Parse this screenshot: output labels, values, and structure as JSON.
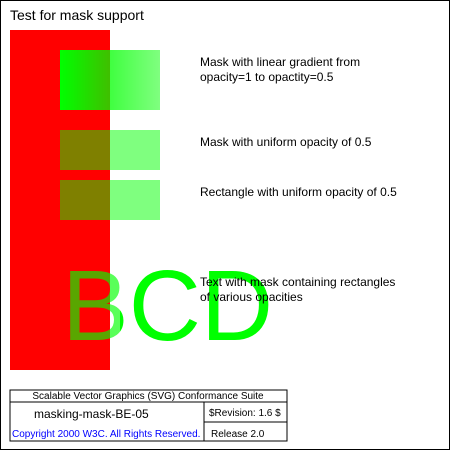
{
  "title": "Test for mask support",
  "colors": {
    "red": "#ff0000",
    "green": "#00ff00",
    "border": "#000000",
    "copyright": "#0000ff",
    "suite_text": "#000000"
  },
  "descriptions": [
    "Mask with linear gradient from",
    "opacity=1 to opactity=0.5",
    "Mask with uniform opacity of 0.5",
    "Rectangle with uniform opacity of 0.5",
    "Text with mask containing rectangles",
    "of various opacities"
  ],
  "masked_text": "BCD",
  "footer": {
    "suite_title": "Scalable Vector Graphics (SVG) Conformance Suite",
    "test_name": "masking-mask-BE-05",
    "revision": "$Revision: 1.6 $",
    "copyright": "Copyright 2000 W3C. All Rights Reserved.",
    "release": "Release 2.0"
  }
}
